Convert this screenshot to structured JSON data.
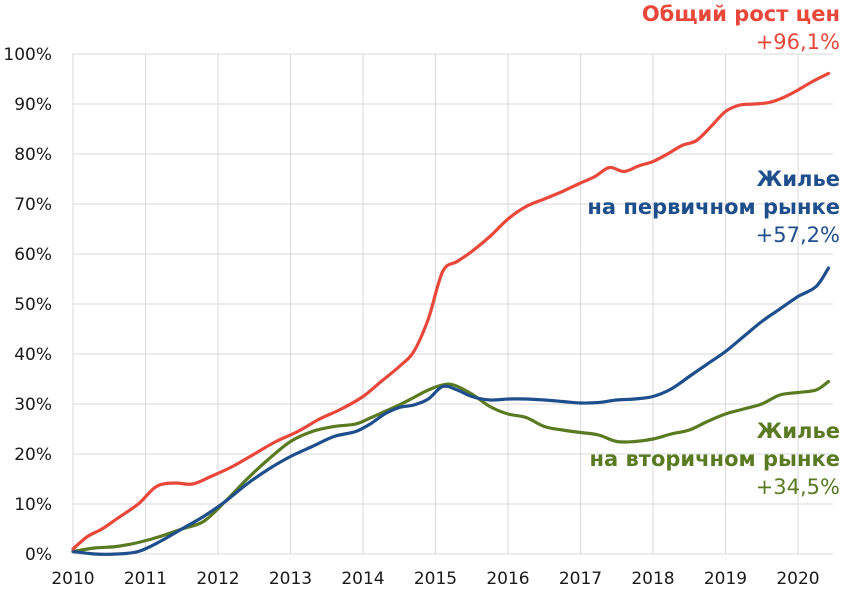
{
  "chart_data": {
    "type": "line",
    "xlim": [
      2010,
      2020.5
    ],
    "ylim": [
      0,
      100
    ],
    "x_ticks": [
      "2010",
      "2011",
      "2012",
      "2013",
      "2014",
      "2015",
      "2016",
      "2017",
      "2018",
      "2019",
      "2020"
    ],
    "y_ticks": [
      "0%",
      "10%",
      "20%",
      "30%",
      "40%",
      "50%",
      "60%",
      "70%",
      "80%",
      "90%",
      "100%"
    ],
    "grid": true,
    "series": [
      {
        "color": "#e8473a",
        "x": [
          2010,
          2010.2,
          2010.4,
          2010.6,
          2010.9,
          2011.15,
          2011.4,
          2011.65,
          2011.9,
          2012.2,
          2012.5,
          2012.8,
          2013.1,
          2013.4,
          2013.7,
          2014.0,
          2014.25,
          2014.5,
          2014.7,
          2014.9,
          2015.1,
          2015.3,
          2015.5,
          2015.75,
          2016.0,
          2016.25,
          2016.5,
          2016.75,
          2017.0,
          2017.2,
          2017.4,
          2017.6,
          2017.8,
          2018.0,
          2018.2,
          2018.4,
          2018.6,
          2018.8,
          2019.0,
          2019.2,
          2019.4,
          2019.6,
          2019.8,
          2020.0,
          2020.2,
          2020.42
        ],
        "values": [
          1,
          3.5,
          5,
          7,
          10,
          13.5,
          14.2,
          14,
          15.5,
          17.5,
          20,
          22.5,
          24.5,
          27,
          29,
          31.5,
          34.5,
          37.5,
          40.5,
          47,
          56.5,
          58.5,
          60.5,
          63.5,
          67,
          69.5,
          71,
          72.5,
          74.2,
          75.5,
          77.3,
          76.5,
          77.6,
          78.5,
          80,
          81.7,
          82.7,
          85.5,
          88.5,
          89.8,
          90,
          90.3,
          91.3,
          92.8,
          94.5,
          96.1
        ]
      },
      {
        "color": "#1f4e8c",
        "x": [
          2010,
          2010.3,
          2010.6,
          2010.9,
          2011.2,
          2011.5,
          2011.8,
          2012.1,
          2012.4,
          2012.7,
          2013.0,
          2013.3,
          2013.6,
          2013.9,
          2014.1,
          2014.3,
          2014.5,
          2014.7,
          2014.9,
          2015.1,
          2015.3,
          2015.5,
          2015.75,
          2016.0,
          2016.25,
          2016.5,
          2016.75,
          2017.0,
          2017.25,
          2017.5,
          2017.75,
          2018.0,
          2018.25,
          2018.5,
          2018.75,
          2019.0,
          2019.25,
          2019.5,
          2019.75,
          2020.0,
          2020.25,
          2020.42
        ],
        "values": [
          0.5,
          0,
          0,
          0.5,
          2.5,
          5,
          7.5,
          10.5,
          14,
          17,
          19.5,
          21.5,
          23.5,
          24.5,
          26,
          28,
          29.3,
          29.8,
          31,
          33.5,
          32.8,
          31.5,
          30.8,
          31,
          31,
          30.8,
          30.5,
          30.2,
          30.3,
          30.8,
          31,
          31.5,
          33,
          35.5,
          38,
          40.5,
          43.5,
          46.5,
          49,
          51.5,
          53.5,
          57.2
        ]
      },
      {
        "color": "#5a7a22",
        "x": [
          2010,
          2010.3,
          2010.6,
          2010.9,
          2011.2,
          2011.5,
          2011.8,
          2012.1,
          2012.4,
          2012.7,
          2013.0,
          2013.3,
          2013.6,
          2013.9,
          2014.1,
          2014.3,
          2014.5,
          2014.7,
          2014.9,
          2015.1,
          2015.25,
          2015.5,
          2015.75,
          2016.0,
          2016.25,
          2016.5,
          2016.75,
          2017.0,
          2017.25,
          2017.5,
          2017.75,
          2018.0,
          2018.25,
          2018.5,
          2018.75,
          2019.0,
          2019.25,
          2019.5,
          2019.75,
          2020.0,
          2020.25,
          2020.42
        ],
        "values": [
          0.5,
          1.2,
          1.5,
          2.3,
          3.5,
          5,
          6.5,
          10.5,
          15,
          19,
          22.5,
          24.5,
          25.5,
          26,
          27.2,
          28.5,
          29.8,
          31.3,
          32.8,
          33.8,
          33.8,
          32,
          29.5,
          28,
          27.3,
          25.5,
          24.8,
          24.3,
          23.8,
          22.5,
          22.5,
          23,
          24,
          24.8,
          26.5,
          28,
          29,
          30,
          31.8,
          32.3,
          32.8,
          34.5
        ]
      }
    ]
  },
  "annotations": [
    {
      "title": "Общий рост цен",
      "value": "+96,1%",
      "color": "#e8473a"
    },
    {
      "title_line1": "Жилье",
      "title_line2": "на первичном рынке",
      "value": "+57,2%",
      "color": "#1f4e8c"
    },
    {
      "title_line1": "Жилье",
      "title_line2": "на вторичном рынке",
      "value": "+34,5%",
      "color": "#5a7a22"
    }
  ]
}
